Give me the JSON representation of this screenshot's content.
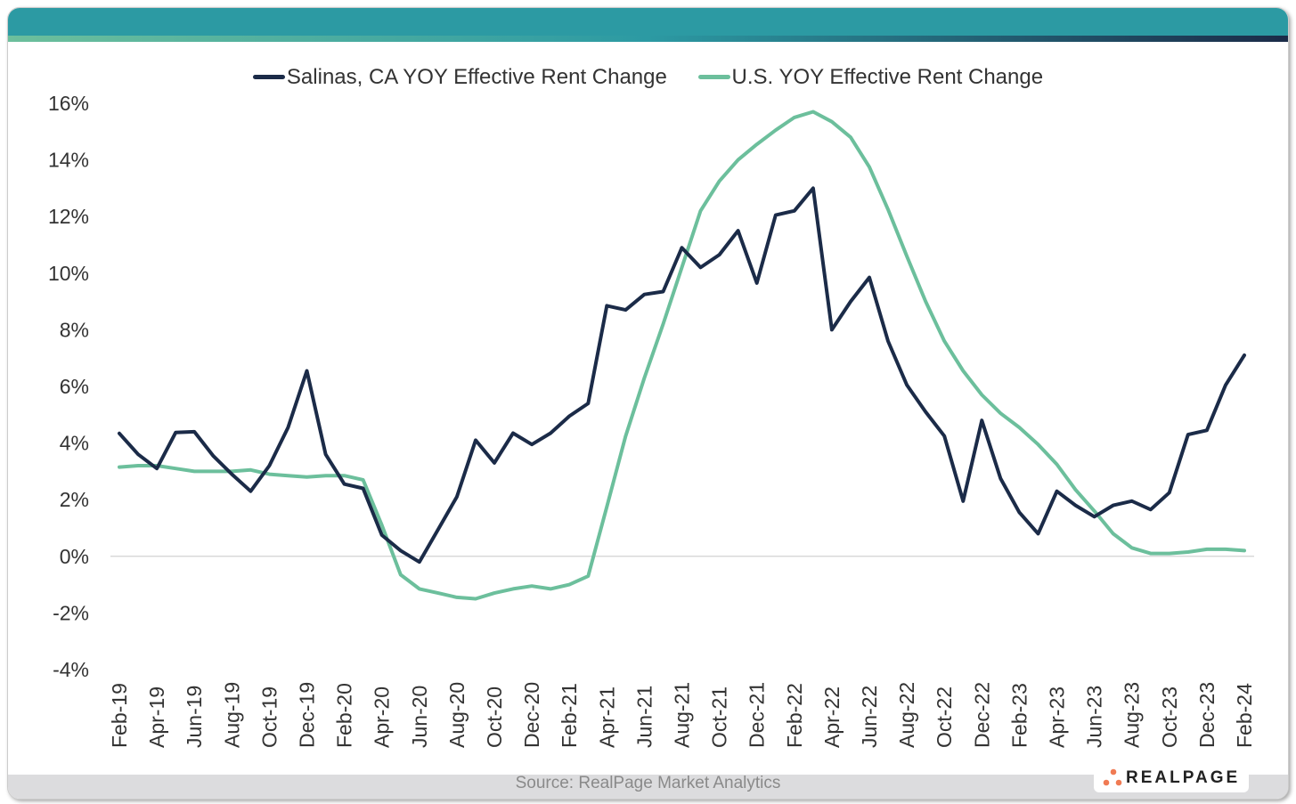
{
  "chart_data": {
    "type": "line",
    "title": "",
    "xlabel": "",
    "ylabel": "",
    "ylim": [
      -4,
      16
    ],
    "yticks": [
      "16%",
      "14%",
      "12%",
      "10%",
      "8%",
      "6%",
      "4%",
      "2%",
      "0%",
      "-2%",
      "-4%"
    ],
    "ytick_values": [
      16,
      14,
      12,
      10,
      8,
      6,
      4,
      2,
      0,
      -2,
      -4
    ],
    "legend_position": "top-center",
    "grid": "zero-line only",
    "x": [
      "Feb-19",
      "Mar-19",
      "Apr-19",
      "May-19",
      "Jun-19",
      "Jul-19",
      "Aug-19",
      "Sep-19",
      "Oct-19",
      "Nov-19",
      "Dec-19",
      "Jan-20",
      "Feb-20",
      "Mar-20",
      "Apr-20",
      "May-20",
      "Jun-20",
      "Jul-20",
      "Aug-20",
      "Sep-20",
      "Oct-20",
      "Nov-20",
      "Dec-20",
      "Jan-21",
      "Feb-21",
      "Mar-21",
      "Apr-21",
      "May-21",
      "Jun-21",
      "Jul-21",
      "Aug-21",
      "Sep-21",
      "Oct-21",
      "Nov-21",
      "Dec-21",
      "Jan-22",
      "Feb-22",
      "Mar-22",
      "Apr-22",
      "May-22",
      "Jun-22",
      "Jul-22",
      "Aug-22",
      "Sep-22",
      "Oct-22",
      "Nov-22",
      "Dec-22",
      "Jan-23",
      "Feb-23",
      "Mar-23",
      "Apr-23",
      "May-23",
      "Jun-23",
      "Jul-23",
      "Aug-23",
      "Sep-23",
      "Oct-23",
      "Nov-23",
      "Dec-23",
      "Jan-24",
      "Feb-24"
    ],
    "xtick_labels": [
      "Feb-19",
      "Apr-19",
      "Jun-19",
      "Aug-19",
      "Oct-19",
      "Dec-19",
      "Feb-20",
      "Apr-20",
      "Jun-20",
      "Aug-20",
      "Oct-20",
      "Dec-20",
      "Feb-21",
      "Apr-21",
      "Jun-21",
      "Aug-21",
      "Oct-21",
      "Dec-21",
      "Feb-22",
      "Apr-22",
      "Jun-22",
      "Aug-22",
      "Oct-22",
      "Dec-22",
      "Feb-23",
      "Apr-23",
      "Jun-23",
      "Aug-23",
      "Oct-23",
      "Dec-23",
      "Feb-24"
    ],
    "series": [
      {
        "name": "Salinas, CA YOY Effective Rent Change",
        "color": "#1b2b48",
        "values": [
          4.34,
          3.6,
          3.1,
          4.37,
          4.4,
          3.55,
          2.9,
          2.3,
          3.2,
          4.55,
          6.55,
          3.6,
          2.55,
          2.4,
          0.75,
          0.2,
          -0.2,
          0.95,
          2.1,
          4.1,
          3.3,
          4.35,
          3.95,
          4.35,
          4.95,
          5.4,
          8.85,
          8.7,
          9.25,
          9.35,
          10.9,
          10.2,
          10.65,
          11.5,
          9.65,
          12.05,
          12.2,
          13.0,
          8.0,
          9.0,
          9.85,
          7.6,
          6.05,
          5.1,
          4.25,
          1.95,
          4.8,
          2.75,
          1.55,
          0.8,
          2.3,
          1.8,
          1.4,
          1.8,
          1.95,
          1.65,
          2.25,
          4.3,
          4.45,
          6.05,
          7.1
        ]
      },
      {
        "name": "U.S. YOY Effective Rent Change",
        "color": "#6cbf9c",
        "values": [
          3.15,
          3.2,
          3.2,
          3.1,
          3.0,
          3.0,
          3.0,
          3.05,
          2.9,
          2.85,
          2.8,
          2.85,
          2.85,
          2.7,
          1.1,
          -0.65,
          -1.15,
          -1.3,
          -1.45,
          -1.5,
          -1.3,
          -1.15,
          -1.05,
          -1.15,
          -1.0,
          -0.7,
          1.75,
          4.25,
          6.3,
          8.2,
          10.2,
          12.2,
          13.25,
          14.0,
          14.55,
          15.05,
          15.5,
          15.7,
          15.35,
          14.8,
          13.75,
          12.25,
          10.6,
          9.0,
          7.6,
          6.55,
          5.7,
          5.05,
          4.55,
          3.95,
          3.25,
          2.35,
          1.6,
          0.8,
          0.3,
          0.1,
          0.1,
          0.15,
          0.25,
          0.25,
          0.2
        ]
      }
    ]
  },
  "source": "Source: RealPage Market Analytics",
  "logo": {
    "text": "REALPAGE",
    "dot_color": "#f07b54"
  },
  "colors": {
    "header": "#2c9aa3",
    "accent_green": "#6cbf9c",
    "navy": "#1b2b48"
  }
}
